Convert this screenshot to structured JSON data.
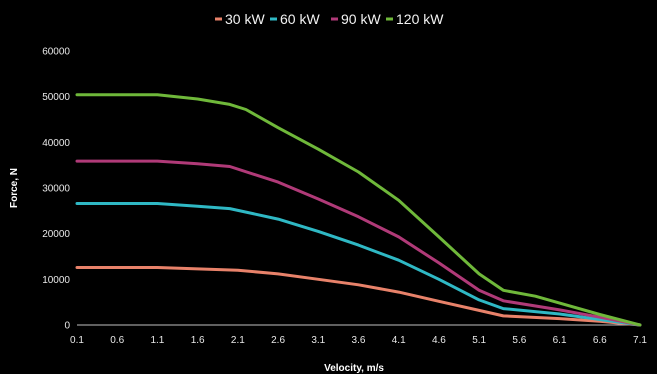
{
  "chart_data": {
    "type": "line",
    "title": "",
    "xlabel": "Velocity, m/s",
    "ylabel": "Force, N",
    "xlim": [
      0.1,
      7.1
    ],
    "ylim": [
      0,
      60000
    ],
    "x_ticks": [
      "0.1",
      "0.6",
      "1.1",
      "1.6",
      "2.1",
      "2.6",
      "3.1",
      "3.6",
      "4.1",
      "4.6",
      "5.1",
      "5.6",
      "6.1",
      "6.6",
      "7.1"
    ],
    "y_ticks": [
      "0",
      "10000",
      "20000",
      "30000",
      "40000",
      "50000",
      "60000"
    ],
    "grid": false,
    "legend_position": "top",
    "series": [
      {
        "name": "30 kW",
        "color": "#e8826a",
        "points": [
          [
            0.1,
            12600
          ],
          [
            1.1,
            12600
          ],
          [
            2.1,
            12000
          ],
          [
            2.6,
            11200
          ],
          [
            3.1,
            10000
          ],
          [
            3.6,
            8800
          ],
          [
            4.1,
            7200
          ],
          [
            4.6,
            5200
          ],
          [
            5.1,
            3200
          ],
          [
            5.4,
            2000
          ],
          [
            6.1,
            1400
          ],
          [
            6.6,
            800
          ],
          [
            7.1,
            0
          ]
        ]
      },
      {
        "name": "60 kW",
        "color": "#2fb8c4",
        "points": [
          [
            0.1,
            26600
          ],
          [
            1.1,
            26600
          ],
          [
            1.6,
            26000
          ],
          [
            2.0,
            25500
          ],
          [
            2.6,
            23200
          ],
          [
            3.1,
            20500
          ],
          [
            3.6,
            17500
          ],
          [
            4.1,
            14200
          ],
          [
            4.6,
            10000
          ],
          [
            5.1,
            5500
          ],
          [
            5.4,
            3600
          ],
          [
            6.1,
            2400
          ],
          [
            6.6,
            1200
          ],
          [
            7.1,
            0
          ]
        ]
      },
      {
        "name": "90 kW",
        "color": "#b03a78",
        "points": [
          [
            0.1,
            35900
          ],
          [
            1.1,
            35900
          ],
          [
            1.6,
            35300
          ],
          [
            2.0,
            34700
          ],
          [
            2.6,
            31300
          ],
          [
            3.1,
            27600
          ],
          [
            3.6,
            23700
          ],
          [
            4.1,
            19300
          ],
          [
            4.6,
            13600
          ],
          [
            5.1,
            7600
          ],
          [
            5.4,
            5300
          ],
          [
            6.1,
            3300
          ],
          [
            6.6,
            1700
          ],
          [
            7.1,
            0
          ]
        ]
      },
      {
        "name": "120 kW",
        "color": "#6fb83a",
        "points": [
          [
            0.1,
            50400
          ],
          [
            1.1,
            50400
          ],
          [
            1.6,
            49500
          ],
          [
            2.0,
            48300
          ],
          [
            2.2,
            47200
          ],
          [
            2.6,
            43200
          ],
          [
            3.1,
            38500
          ],
          [
            3.6,
            33500
          ],
          [
            4.1,
            27300
          ],
          [
            4.6,
            19300
          ],
          [
            5.1,
            11200
          ],
          [
            5.4,
            7600
          ],
          [
            5.8,
            6300
          ],
          [
            6.1,
            4800
          ],
          [
            6.6,
            2300
          ],
          [
            7.1,
            0
          ]
        ]
      }
    ]
  }
}
